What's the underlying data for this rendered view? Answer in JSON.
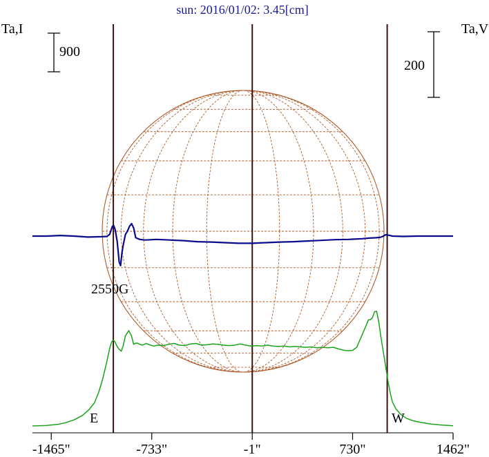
{
  "title": "sun: 2016/01/02: 3.45[cm]",
  "left_axis_label": "Ta,I",
  "right_axis_label": "Ta,V",
  "left_scale_label": "900",
  "right_scale_label": "200",
  "east_label": "E",
  "west_label": "W",
  "annotation": "2550G",
  "colors": {
    "title": "#1a1a8c",
    "stokes_i": "#1aa31a",
    "stokes_v": "#0a0a8c",
    "grid": "#b05a2a",
    "marker": "#3a1010"
  },
  "chart_data": {
    "type": "line",
    "title": "sun: 2016/01/02: 3.45[cm]",
    "x_ticks": [
      {
        "value": -1465,
        "label": "-1465\""
      },
      {
        "value": -733,
        "label": "-733\""
      },
      {
        "value": -1,
        "label": "-1\""
      },
      {
        "value": 730,
        "label": "730\""
      },
      {
        "value": 1462,
        "label": "1462\""
      }
    ],
    "xlim": [
      -1602,
      1462
    ],
    "vertical_markers": [
      {
        "x": -1013,
        "label": "E"
      },
      {
        "x": -1
      },
      {
        "x": 982,
        "label": "W"
      }
    ],
    "scale_bars": {
      "left": 900,
      "right": 200
    },
    "series": [
      {
        "name": "Ta,I",
        "x": [
          -1602,
          -1500,
          -1420,
          -1360,
          -1300,
          -1240,
          -1190,
          -1150,
          -1120,
          -1090,
          -1060,
          -1040,
          -1025,
          -1013,
          -1003,
          -990,
          -975,
          -955,
          -940,
          -925,
          -900,
          -880,
          -865,
          -855,
          -840,
          -820,
          -800,
          -775,
          -750,
          -720,
          -690,
          -650,
          -610,
          -570,
          -530,
          -490,
          -450,
          -410,
          -370,
          -330,
          -290,
          -250,
          -210,
          -170,
          -130,
          -90,
          -50,
          -10,
          30,
          70,
          110,
          150,
          190,
          230,
          270,
          310,
          350,
          390,
          430,
          470,
          510,
          550,
          590,
          630,
          670,
          700,
          730,
          760,
          790,
          810,
          830,
          845,
          860,
          875,
          890,
          905,
          920,
          940,
          960,
          975,
          990,
          1005,
          1020,
          1045,
          1080,
          1120,
          1170,
          1230,
          1300,
          1380,
          1462
        ],
        "values": [
          0,
          10,
          35,
          75,
          140,
          240,
          380,
          540,
          780,
          1100,
          1500,
          1800,
          1960,
          2000,
          1970,
          1880,
          1800,
          1740,
          1880,
          2100,
          2220,
          2090,
          1900,
          1920,
          1930,
          1900,
          1880,
          1920,
          1890,
          1860,
          1880,
          1870,
          1900,
          1920,
          1880,
          1870,
          1910,
          1920,
          1880,
          1890,
          1910,
          1900,
          1880,
          1870,
          1880,
          1910,
          1880,
          1860,
          1870,
          1860,
          1880,
          1860,
          1850,
          1860,
          1840,
          1850,
          1840,
          1830,
          1840,
          1820,
          1830,
          1820,
          1830,
          1790,
          1760,
          1750,
          1760,
          1830,
          2050,
          2200,
          2350,
          2470,
          2470,
          2520,
          2660,
          2670,
          2430,
          2000,
          1600,
          1300,
          1000,
          760,
          560,
          400,
          270,
          180,
          120,
          80,
          45,
          20,
          5
        ]
      },
      {
        "name": "Ta,V",
        "x": [
          -1602,
          -1500,
          -1400,
          -1300,
          -1200,
          -1100,
          -1060,
          -1040,
          -1020,
          -1010,
          -1000,
          -985,
          -970,
          -960,
          -950,
          -940,
          -925,
          -910,
          -895,
          -880,
          -865,
          -850,
          -820,
          -780,
          -700,
          -600,
          -500,
          -400,
          -300,
          -200,
          -100,
          0,
          100,
          200,
          300,
          400,
          500,
          600,
          700,
          800,
          850,
          900,
          930,
          950,
          970,
          990,
          1020,
          1100,
          1200,
          1300,
          1400,
          1462
        ],
        "values": [
          0,
          0,
          2,
          0,
          -3,
          -2,
          -1,
          5,
          30,
          32,
          20,
          -15,
          -80,
          -90,
          -50,
          -25,
          5,
          15,
          30,
          38,
          25,
          -5,
          -10,
          -12,
          -10,
          -12,
          -14,
          -17,
          -18,
          -20,
          -22,
          -22,
          -20,
          -18,
          -17,
          -15,
          -13,
          -11,
          -10,
          -8,
          -6,
          -5,
          -4,
          -1,
          4,
          3,
          0,
          -1,
          0,
          0,
          0,
          0
        ]
      }
    ]
  }
}
